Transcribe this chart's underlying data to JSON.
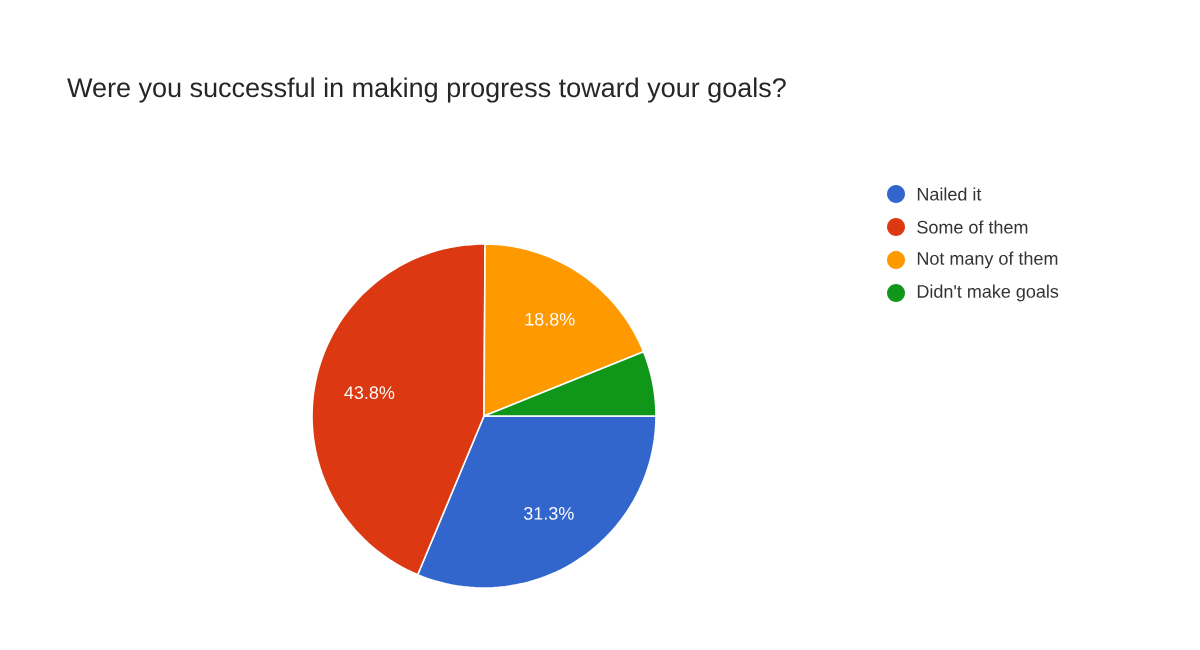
{
  "chart_data": {
    "type": "pie",
    "title": "Were you successful in making progress toward your goals?",
    "categories": [
      "Nailed it",
      "Some of them",
      "Not many of them",
      "Didn't make goals"
    ],
    "values": [
      31.3,
      43.8,
      18.8,
      6.1
    ],
    "colors": [
      "#3366cc",
      "#dc3912",
      "#ff9900",
      "#109618"
    ],
    "value_labels": [
      "31.3%",
      "43.8%",
      "18.8%",
      null
    ],
    "legend": "right"
  }
}
